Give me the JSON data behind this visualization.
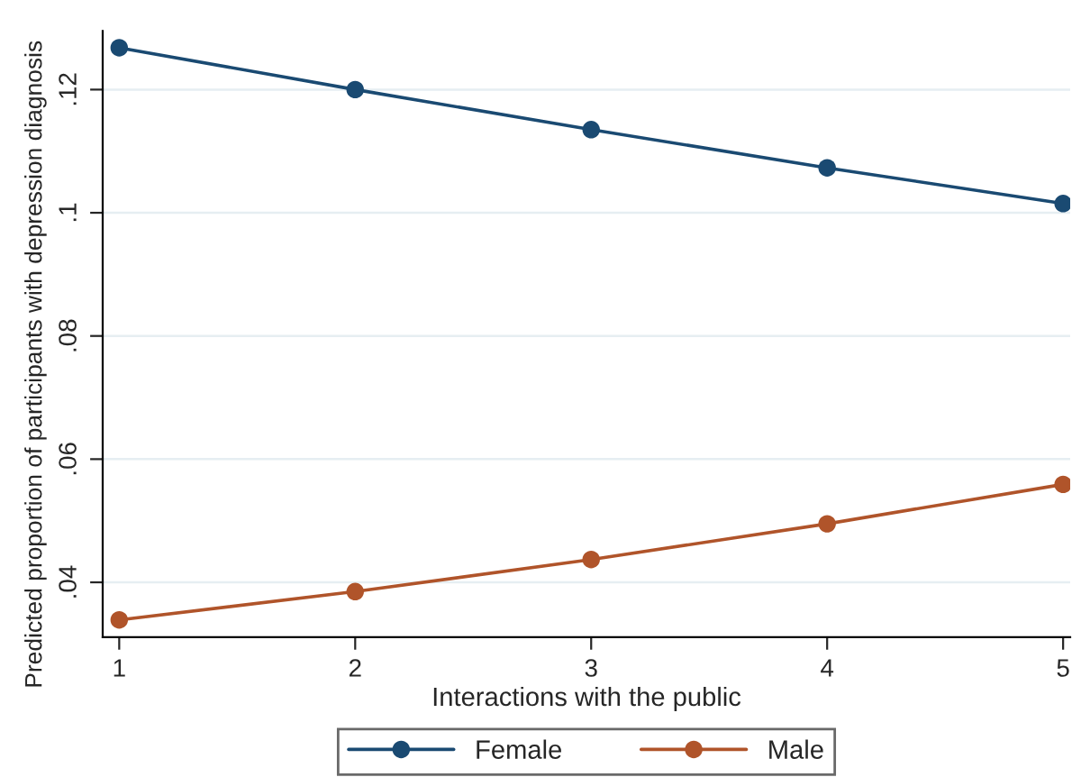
{
  "chart_data": {
    "type": "line",
    "xlabel": "Interactions with the public",
    "ylabel": "Predicted proportion of participants with depression diagnosis",
    "x": [
      1,
      2,
      3,
      4,
      5
    ],
    "series": [
      {
        "name": "Female",
        "color": "#1a4a72",
        "values": [
          0.1268,
          0.12,
          0.1135,
          0.1073,
          0.1015
        ]
      },
      {
        "name": "Male",
        "color": "#b0542a",
        "values": [
          0.0339,
          0.0385,
          0.0437,
          0.0495,
          0.0559
        ]
      }
    ],
    "xlim": [
      0.93,
      5.03
    ],
    "xticks": [
      1,
      2,
      3,
      4,
      5
    ],
    "ylim": [
      0.0311,
      0.1295
    ],
    "yticks": [
      {
        "value": 0.04,
        "label": ".04"
      },
      {
        "value": 0.06,
        "label": ".06"
      },
      {
        "value": 0.08,
        "label": ".08"
      },
      {
        "value": 0.1,
        "label": ".1"
      },
      {
        "value": 0.12,
        "label": ".12"
      }
    ],
    "grid": "y",
    "legend": "bottom",
    "marker": "circle",
    "line_style": "solid"
  }
}
